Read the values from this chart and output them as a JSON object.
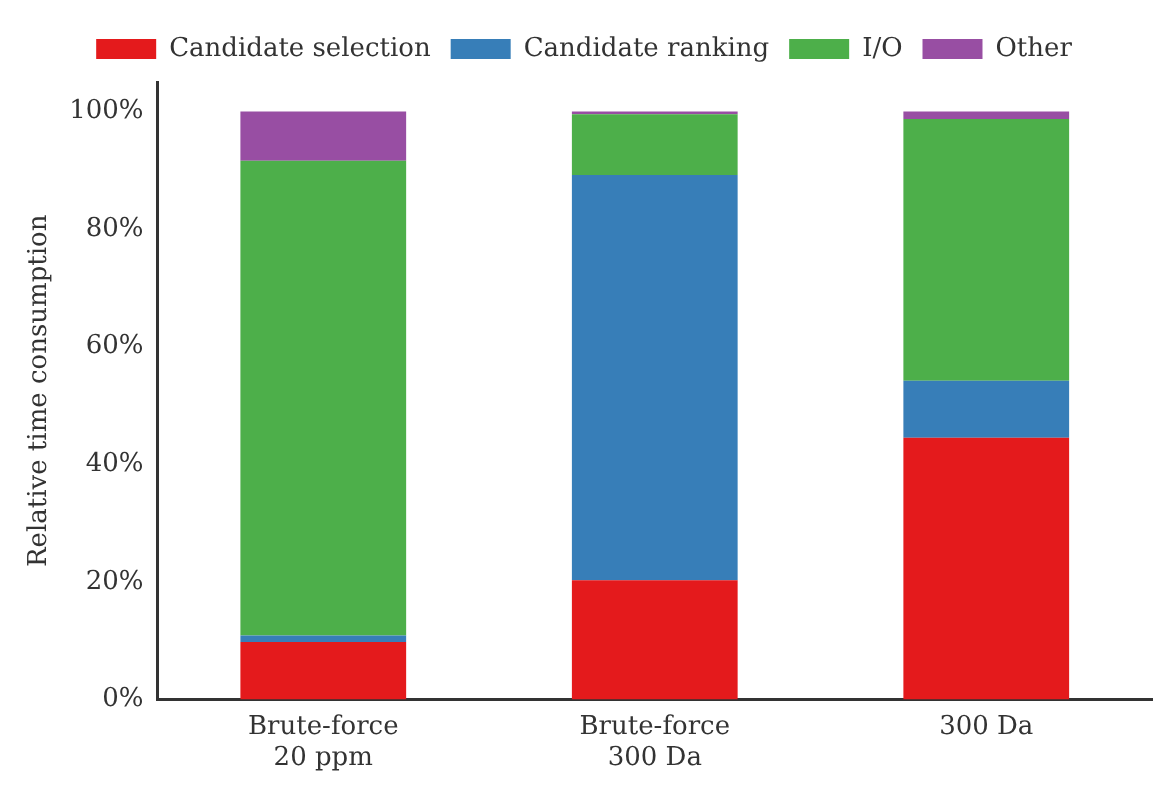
{
  "chart_data": {
    "type": "bar",
    "stacked": true,
    "ylabel": "Relative time consumption",
    "categories": [
      "Brute-force\n20 ppm",
      "Brute-force\n300 Da",
      "300 Da"
    ],
    "series": [
      {
        "name": "Candidate selection",
        "color": "#e41a1c",
        "values": [
          9.8,
          20.3,
          44.5
        ]
      },
      {
        "name": "Candidate ranking",
        "color": "#377eb8",
        "values": [
          1.1,
          68.9,
          9.7
        ]
      },
      {
        "name": "I/O",
        "color": "#4daf4a",
        "values": [
          80.7,
          10.3,
          44.5
        ]
      },
      {
        "name": "Other",
        "color": "#984ea3",
        "values": [
          8.4,
          0.5,
          1.3
        ]
      }
    ],
    "ylim": [
      0,
      105
    ],
    "yticks": [
      {
        "value": 0,
        "label": "0%"
      },
      {
        "value": 20,
        "label": "20%"
      },
      {
        "value": 40,
        "label": "40%"
      },
      {
        "value": 60,
        "label": "60%"
      },
      {
        "value": 80,
        "label": "80%"
      },
      {
        "value": 100,
        "label": "100%"
      }
    ],
    "grid": false,
    "legend": "top"
  }
}
